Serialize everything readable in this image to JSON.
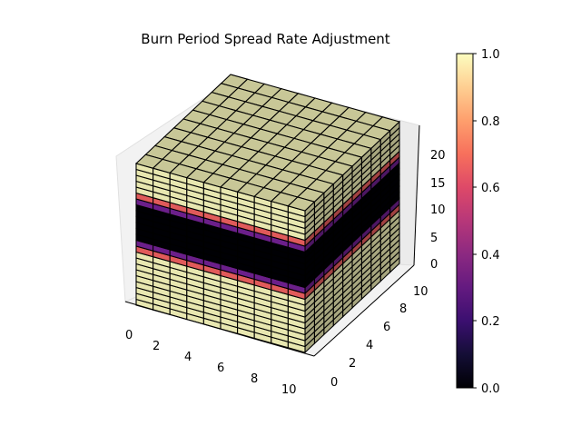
{
  "chart_data": {
    "type": "voxel3d",
    "title": "Burn Period Spread Rate Adjustment",
    "xlabel": "",
    "ylabel": "",
    "zlabel": "",
    "grid_shape": [
      10,
      10,
      24
    ],
    "x_ticks": [
      "0",
      "2",
      "4",
      "6",
      "8",
      "10"
    ],
    "y_ticks": [
      "0",
      "2",
      "4",
      "6",
      "8",
      "10"
    ],
    "z_ticks": [
      "0",
      "5",
      "10",
      "15",
      "20"
    ],
    "xlim": [
      0,
      10
    ],
    "ylim": [
      0,
      10
    ],
    "zlim": [
      0,
      24
    ],
    "colormap": "magma",
    "layers_bottom_to_top": [
      {
        "z_from": 0,
        "z_to": 9,
        "value": 1.0,
        "color": "#e8e7b0"
      },
      {
        "z_from": 9,
        "z_to": 10,
        "value": 0.7,
        "color": "#e05a5a"
      },
      {
        "z_from": 10,
        "z_to": 11,
        "value": 0.35,
        "color": "#6b1f8a"
      },
      {
        "z_from": 11,
        "z_to": 17,
        "value": 0.0,
        "color": "#000004"
      },
      {
        "z_from": 17,
        "z_to": 18,
        "value": 0.35,
        "color": "#6b1f8a"
      },
      {
        "z_from": 18,
        "z_to": 19,
        "value": 0.7,
        "color": "#e05a5a"
      },
      {
        "z_from": 19,
        "z_to": 24,
        "value": 1.0,
        "color": "#e8e7b0"
      }
    ],
    "grid": true,
    "colorbar": {
      "ticks": [
        "0.0",
        "0.2",
        "0.4",
        "0.6",
        "0.8",
        "1.0"
      ],
      "range": [
        0.0,
        1.0
      ],
      "position": "right"
    }
  }
}
